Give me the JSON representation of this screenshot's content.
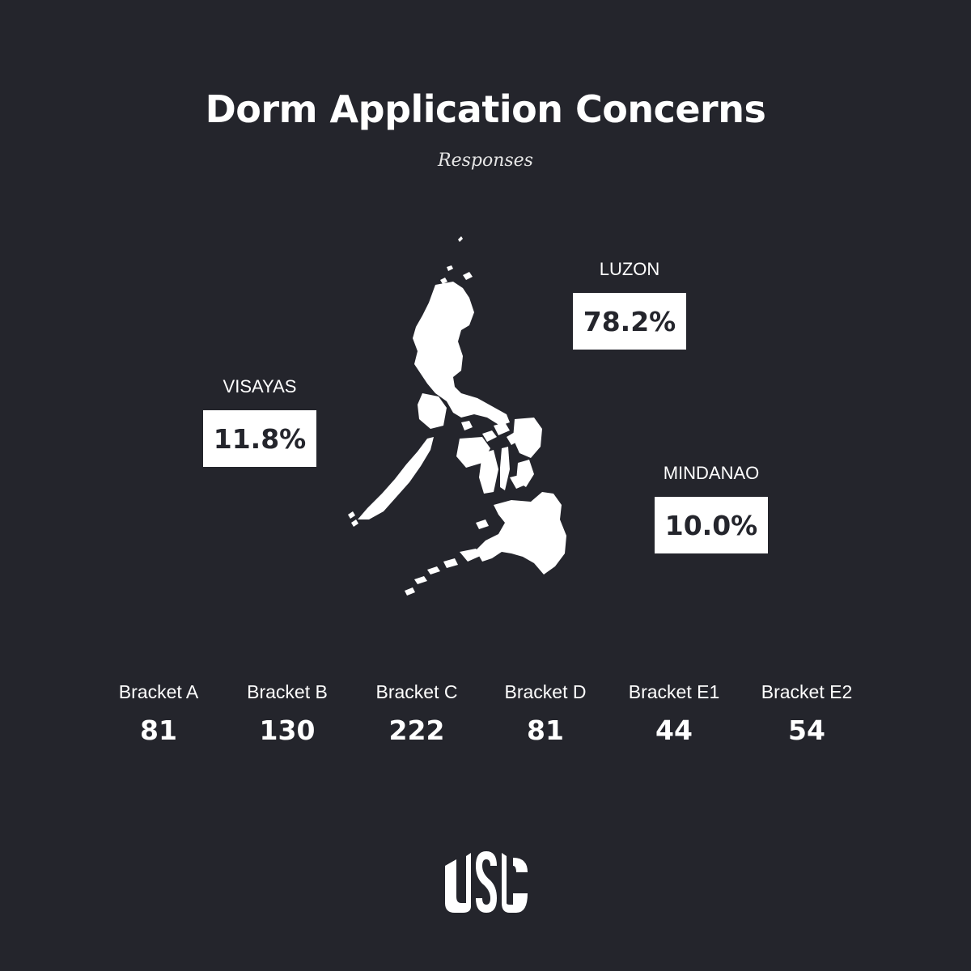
{
  "title": "Dorm Application Concerns",
  "subtitle": "Responses",
  "regions": {
    "luzon": {
      "name": "LUZON",
      "value": "78.2%"
    },
    "visayas": {
      "name": "VISAYAS",
      "value": "11.8%"
    },
    "mindanao": {
      "name": "MINDANAO",
      "value": "10.0%"
    }
  },
  "brackets": [
    {
      "label": "Bracket A",
      "value": "81"
    },
    {
      "label": "Bracket B",
      "value": "130"
    },
    {
      "label": "Bracket C",
      "value": "222"
    },
    {
      "label": "Bracket D",
      "value": "81"
    },
    {
      "label": "Bracket E1",
      "value": "44"
    },
    {
      "label": "Bracket E2",
      "value": "54"
    }
  ],
  "logo": {
    "text": "USC"
  },
  "colors": {
    "background": "#24252c",
    "foreground": "#ffffff"
  }
}
